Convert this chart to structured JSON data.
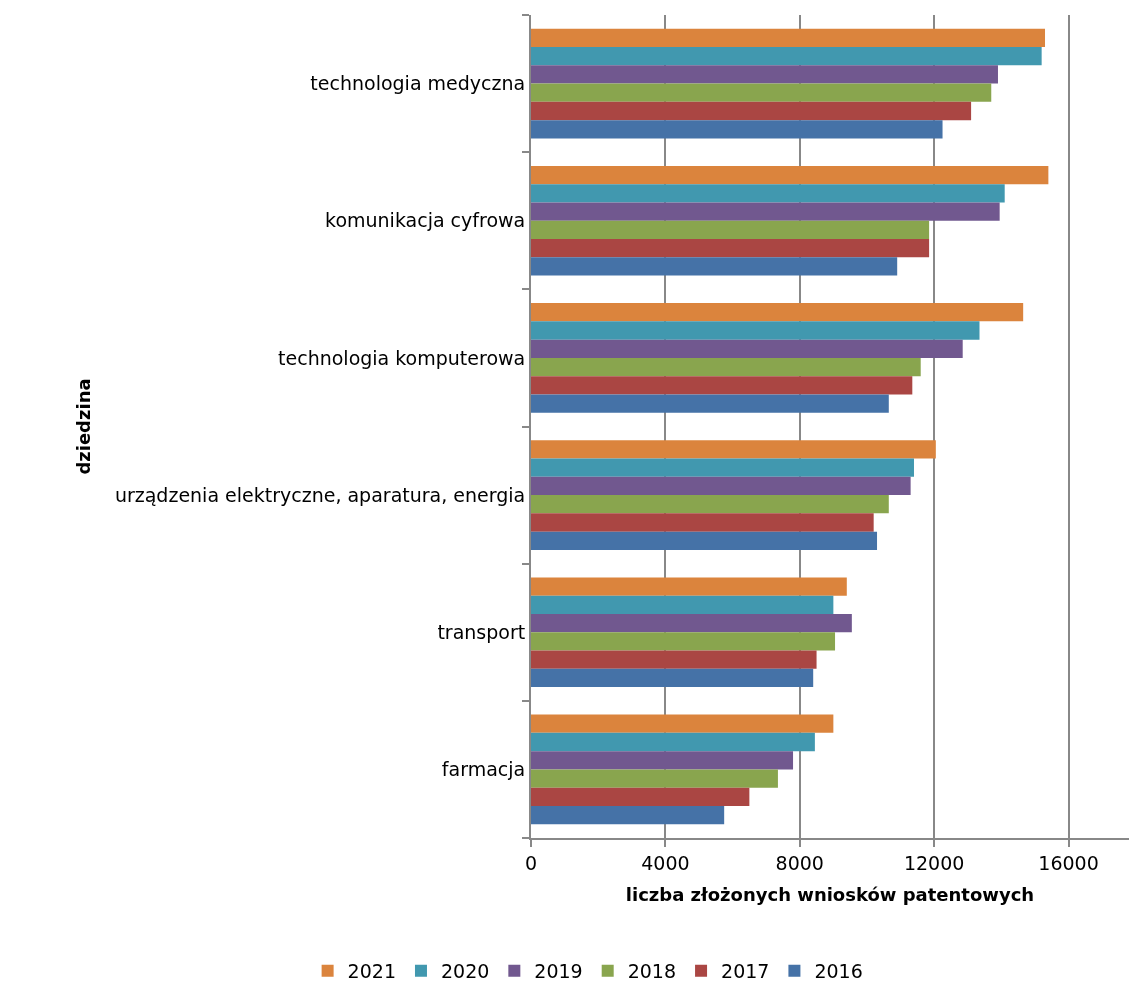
{
  "chart_data": {
    "type": "bar",
    "orientation": "horizontal",
    "xlabel": "liczba złożonych wniosków patentowych",
    "ylabel": "dziedzina",
    "categories": [
      "technologia medyczna",
      "komunikacja cyfrowa",
      "technologia komputerowa",
      "urządzenia elektryczne, aparatura, energia",
      "transport",
      "farmacja"
    ],
    "series": [
      {
        "name": "2021",
        "color": "#db843d",
        "values": [
          15300,
          15400,
          14650,
          12050,
          9400,
          9000
        ]
      },
      {
        "name": "2020",
        "color": "#4198af",
        "values": [
          15200,
          14100,
          13350,
          11400,
          9000,
          8450
        ]
      },
      {
        "name": "2019",
        "color": "#71588f",
        "values": [
          13900,
          13950,
          12850,
          11300,
          9550,
          7800
        ]
      },
      {
        "name": "2018",
        "color": "#89a54e",
        "values": [
          13700,
          11850,
          11600,
          10650,
          9050,
          7350
        ]
      },
      {
        "name": "2017",
        "color": "#aa4643",
        "values": [
          13100,
          11850,
          11350,
          10200,
          8500,
          6500
        ]
      },
      {
        "name": "2016",
        "color": "#4572a7",
        "values": [
          12250,
          10900,
          10650,
          10300,
          8400,
          5750
        ]
      }
    ],
    "xlim": [
      0,
      17800
    ],
    "xticks": [
      0,
      4000,
      8000,
      12000,
      16000
    ],
    "grid": "x",
    "legend": "bottom"
  }
}
